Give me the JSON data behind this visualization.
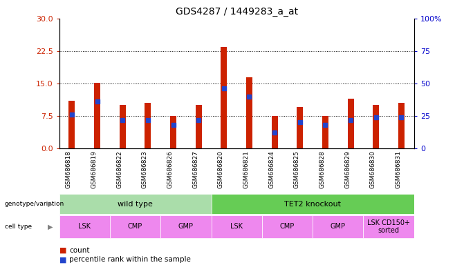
{
  "title": "GDS4287 / 1449283_a_at",
  "samples": [
    "GSM686818",
    "GSM686819",
    "GSM686822",
    "GSM686823",
    "GSM686826",
    "GSM686827",
    "GSM686820",
    "GSM686821",
    "GSM686824",
    "GSM686825",
    "GSM686828",
    "GSM686829",
    "GSM686830",
    "GSM686831"
  ],
  "counts": [
    11.0,
    15.2,
    10.0,
    10.5,
    7.5,
    10.0,
    23.5,
    16.5,
    7.5,
    9.5,
    7.5,
    11.5,
    10.0,
    10.5
  ],
  "percentile_ranks": [
    26,
    36,
    22,
    22,
    18,
    22,
    46,
    40,
    12,
    20,
    18,
    22,
    24,
    24
  ],
  "left_ylim": [
    0,
    30
  ],
  "right_ylim": [
    0,
    100
  ],
  "left_yticks": [
    0,
    7.5,
    15,
    22.5,
    30
  ],
  "right_yticks": [
    0,
    25,
    50,
    75,
    100
  ],
  "bar_color": "#cc2200",
  "dot_color": "#2244cc",
  "axis_color_left": "#cc2200",
  "axis_color_right": "#0000cc",
  "xtick_bg": "#cccccc",
  "genotype_groups": [
    {
      "label": "wild type",
      "start": 0,
      "end": 6,
      "color": "#aaddaa"
    },
    {
      "label": "TET2 knockout",
      "start": 6,
      "end": 14,
      "color": "#66cc55"
    }
  ],
  "cell_type_groups": [
    {
      "label": "LSK",
      "start": 0,
      "end": 2,
      "color": "#ee88ee"
    },
    {
      "label": "CMP",
      "start": 2,
      "end": 4,
      "color": "#ee88ee"
    },
    {
      "label": "GMP",
      "start": 4,
      "end": 6,
      "color": "#ee88ee"
    },
    {
      "label": "LSK",
      "start": 6,
      "end": 8,
      "color": "#ee88ee"
    },
    {
      "label": "CMP",
      "start": 8,
      "end": 10,
      "color": "#ee88ee"
    },
    {
      "label": "GMP",
      "start": 10,
      "end": 12,
      "color": "#ee88ee"
    },
    {
      "label": "LSK CD150+\nsorted",
      "start": 12,
      "end": 14,
      "color": "#ee88ee"
    }
  ],
  "legend_count_label": "count",
  "legend_pct_label": "percentile rank within the sample",
  "bar_width": 0.25
}
